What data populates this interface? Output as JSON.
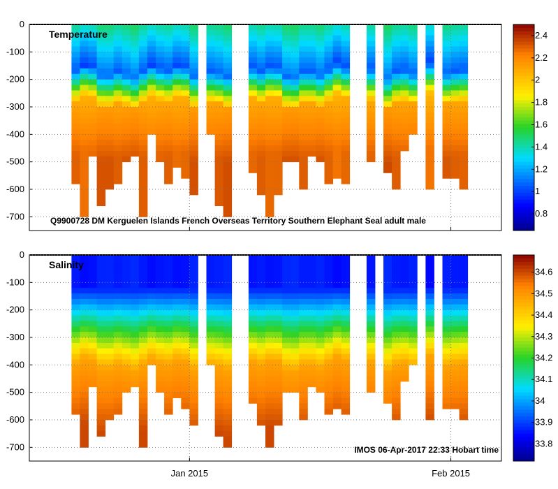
{
  "chart_data": [
    {
      "type": "heatmap",
      "title": "Temperature",
      "annotation": "Q9900728 DM Kerguelen Islands French Overseas Territory Southern Elephant Seal adult male",
      "x_range": [
        "2014-12-13",
        "2015-02-07"
      ],
      "xticks": [
        {
          "date": "2015-01-01",
          "label": ""
        },
        {
          "date": "2015-02-01",
          "label": ""
        }
      ],
      "ylim": [
        -750,
        0
      ],
      "yticks": [
        0,
        -100,
        -200,
        -300,
        -400,
        -500,
        -600,
        -700
      ],
      "ytick_labels": [
        "0",
        "-100",
        "-200",
        "-300",
        "-400",
        "-500",
        "-600",
        "-700"
      ],
      "colorbar": {
        "min": 0.65,
        "max": 2.5,
        "ticks": [
          0.8,
          1,
          1.2,
          1.4,
          1.6,
          1.8,
          2,
          2.2,
          2.4
        ],
        "tick_labels": [
          "0.8",
          "1",
          "1.2",
          "1.4",
          "1.6",
          "1.8",
          "2",
          "2.2",
          "2.4"
        ]
      },
      "profile": {
        "surface": 1.45,
        "min_depth": 170,
        "min_value": 1.05,
        "thermocline_depth": 280,
        "deep": 2.2
      },
      "gaps_days": [
        20,
        24,
        25,
        38,
        39,
        41,
        46,
        48,
        52,
        53
      ],
      "max_depths_by_day": [
        -580,
        -700,
        -480,
        -650,
        -600,
        -580,
        -500,
        -480,
        -700,
        -400,
        -500,
        -580,
        -520,
        -560,
        -620,
        -600,
        -400,
        -650,
        -700,
        -620,
        -560,
        -530,
        -620,
        -700,
        -620,
        -500,
        -500,
        -600,
        -480,
        -500,
        -580,
        -550,
        -580,
        -620,
        -520,
        -500,
        -580,
        -530,
        -600,
        -450,
        -400,
        -500,
        -600,
        -480,
        -560,
        -550,
        -600,
        -500,
        -550,
        -500,
        -480,
        -520,
        -570,
        -400,
        -400,
        -560
      ]
    },
    {
      "type": "heatmap",
      "title": "Salinity",
      "annotation": "IMOS 06-Apr-2017 22:33 Hobart time",
      "x_range": [
        "2014-12-13",
        "2015-02-07"
      ],
      "xticks": [
        {
          "date": "2015-01-01",
          "label": "Jan 2015"
        },
        {
          "date": "2015-02-01",
          "label": "Feb 2015"
        }
      ],
      "ylim": [
        -750,
        0
      ],
      "yticks": [
        0,
        -100,
        -200,
        -300,
        -400,
        -500,
        -600,
        -700
      ],
      "ytick_labels": [
        "0",
        "-100",
        "-200",
        "-300",
        "-400",
        "-500",
        "-600",
        "-700"
      ],
      "colorbar": {
        "min": 33.72,
        "max": 34.68,
        "ticks": [
          33.8,
          33.9,
          34,
          34.1,
          34.2,
          34.3,
          34.4,
          34.5,
          34.6
        ],
        "tick_labels": [
          "33.8",
          "33.9",
          "34",
          "34.1",
          "34.2",
          "34.3",
          "34.4",
          "34.5",
          "34.6"
        ]
      },
      "profile": {
        "surface": 33.86,
        "halocline_depth": 300,
        "deep": 34.55
      },
      "gaps_days": [
        20,
        24,
        25,
        38,
        39,
        41,
        46,
        48,
        52,
        53
      ],
      "max_depths_by_day": [
        -580,
        -700,
        -480,
        -650,
        -600,
        -580,
        -500,
        -480,
        -700,
        -400,
        -500,
        -580,
        -520,
        -560,
        -620,
        -600,
        -400,
        -650,
        -700,
        -620,
        -560,
        -530,
        -620,
        -700,
        -620,
        -500,
        -500,
        -600,
        -480,
        -500,
        -580,
        -550,
        -580,
        -620,
        -520,
        -500,
        -580,
        -530,
        -600,
        -450,
        -400,
        -500,
        -600,
        -480,
        -560,
        -550,
        -600,
        -500,
        -550,
        -500,
        -480,
        -520,
        -570,
        -400,
        -400,
        -560
      ]
    }
  ]
}
